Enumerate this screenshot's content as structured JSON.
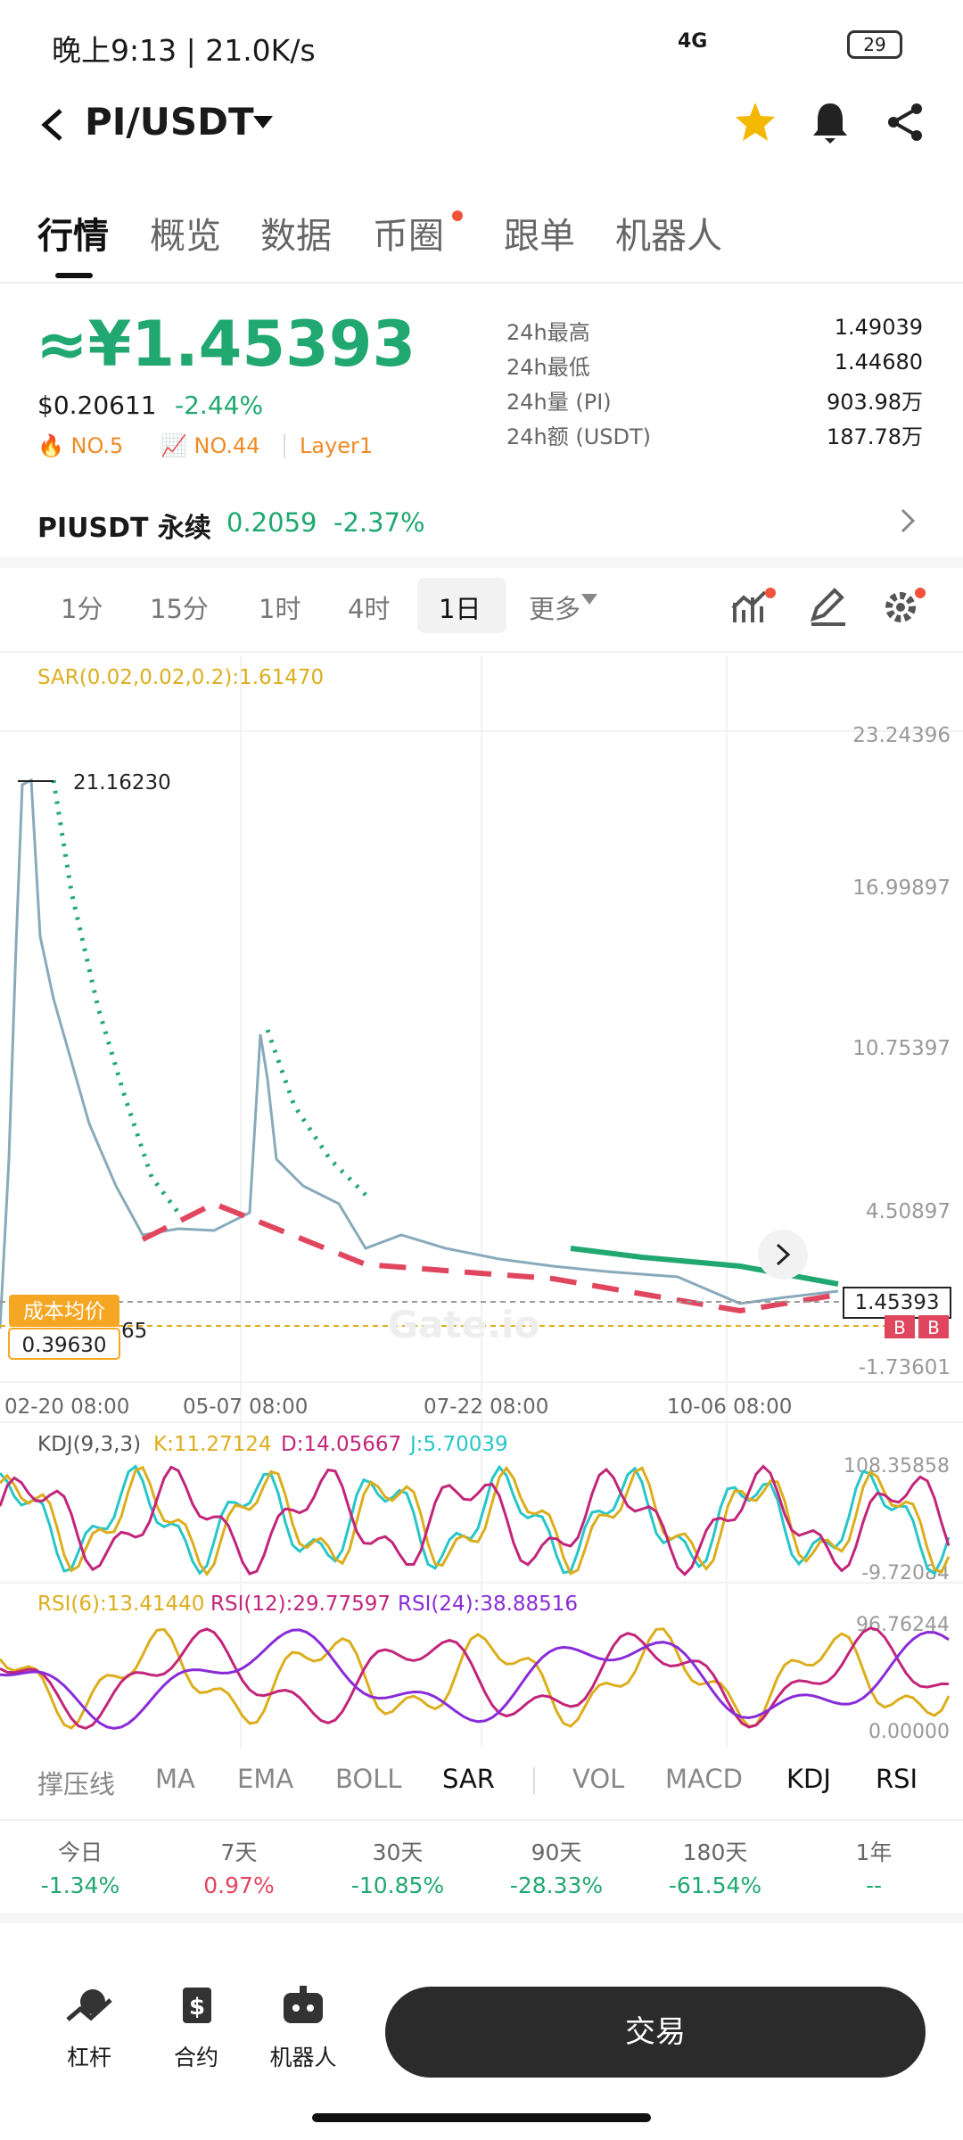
{
  "status_bar": {
    "time": "晚上9:13 | 21.0K/s",
    "signal": "4G",
    "battery": "29"
  },
  "header": {
    "pair": "PI/USDT"
  },
  "tabs": [
    "行情",
    "概览",
    "数据",
    "币圈",
    "跟单",
    "机器人"
  ],
  "price": {
    "cny": "≈¥1.45393",
    "usd": "$0.20611",
    "change": "-2.44%",
    "tags": [
      "NO.5",
      "NO.44",
      "Layer1"
    ]
  },
  "stats": [
    {
      "label": "24h最高",
      "value": "1.49039"
    },
    {
      "label": "24h最低",
      "value": "1.44680"
    },
    {
      "label": "24h量 (PI)",
      "value": "903.98万"
    },
    {
      "label": "24h额 (USDT)",
      "value": "187.78万"
    }
  ],
  "perpetual": {
    "name": "PIUSDT 永续",
    "price": "0.2059",
    "change": "-2.37%"
  },
  "intervals": [
    "1分",
    "15分",
    "1时",
    "4时",
    "1日",
    "更多"
  ],
  "chart": {
    "indicator": "SAR(0.02,0.02,0.2):1.61470",
    "yticks": [
      "23.24396",
      "16.99897",
      "10.75397",
      "4.50897",
      "-1.73601"
    ],
    "xticks": [
      "02-20 08:00",
      "05-07 08:00",
      "07-22 08:00",
      "10-06 08:00"
    ],
    "high_label": "21.16230",
    "cost_label": "成本均价",
    "cost_value": "0.39630",
    "partial_label": "65",
    "last_price": "1.45393",
    "badges": [
      "B",
      "B"
    ]
  },
  "kdj": {
    "title": "KDJ(9,3,3)",
    "k": "K:11.27124",
    "d": "D:14.05667",
    "j": "J:5.70039",
    "max": "108.35858",
    "min": "-9.72084"
  },
  "rsi": {
    "r6": "RSI(6):13.41440",
    "r12": "RSI(12):29.77597",
    "r24": "RSI(24):38.88516",
    "max": "96.76244",
    "min": "0.00000"
  },
  "indicator_tabs": [
    "撑压线",
    "MA",
    "EMA",
    "BOLL",
    "SAR",
    "VOL",
    "MACD",
    "KDJ",
    "RSI"
  ],
  "periods": [
    {
      "label": "今日",
      "value": "-1.34%"
    },
    {
      "label": "7天",
      "value": "0.97%"
    },
    {
      "label": "30天",
      "value": "-10.85%"
    },
    {
      "label": "90天",
      "value": "-28.33%"
    },
    {
      "label": "180天",
      "value": "-61.54%"
    },
    {
      "label": "1年",
      "value": "--"
    }
  ],
  "bottom_nav": [
    "杠杆",
    "合约",
    "机器人"
  ],
  "trade_button": "交易"
}
